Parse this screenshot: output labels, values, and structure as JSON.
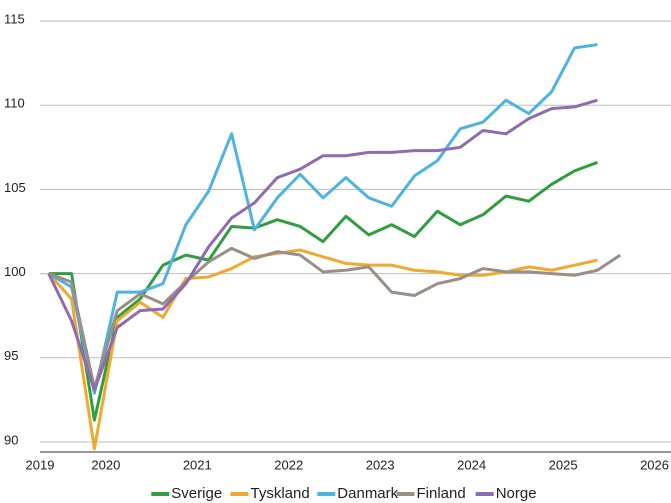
{
  "chart_data": {
    "type": "line",
    "x": [
      2019.875,
      2020.125,
      2020.375,
      2020.625,
      2020.875,
      2021.125,
      2021.375,
      2021.625,
      2021.875,
      2022.125,
      2022.375,
      2022.625,
      2022.875,
      2023.125,
      2023.375,
      2023.625,
      2023.875,
      2024.125,
      2024.375,
      2024.625,
      2024.875,
      2025.125,
      2025.375,
      2025.625,
      2025.875,
      2026.125
    ],
    "series": [
      {
        "name": "Sverige",
        "color": "#2e9e3e",
        "values": [
          100,
          100,
          91.3,
          97.4,
          98.5,
          100.5,
          101.1,
          100.8,
          102.8,
          102.7,
          103.2,
          102.8,
          101.9,
          103.4,
          102.3,
          102.9,
          102.2,
          103.7,
          102.9,
          103.5,
          104.6,
          104.3,
          105.3,
          106.1,
          106.6,
          null
        ]
      },
      {
        "name": "Tyskland",
        "color": "#f0a830",
        "values": [
          100,
          98.5,
          89.6,
          97.2,
          98.3,
          97.4,
          99.7,
          99.8,
          100.3,
          101.0,
          101.2,
          101.4,
          101.0,
          100.6,
          100.5,
          100.5,
          100.2,
          100.1,
          99.9,
          99.9,
          100.1,
          100.4,
          100.2,
          100.5,
          100.8,
          null
        ]
      },
      {
        "name": "Danmark",
        "color": "#4db3e0",
        "values": [
          100,
          99.2,
          92.9,
          98.9,
          98.9,
          99.4,
          102.9,
          104.9,
          108.3,
          102.6,
          104.5,
          105.9,
          104.5,
          105.7,
          104.5,
          104.0,
          105.8,
          106.7,
          108.6,
          109.0,
          110.3,
          109.5,
          110.8,
          113.4,
          113.6,
          null
        ]
      },
      {
        "name": "Finland",
        "color": "#9a8f88",
        "values": [
          100,
          99.5,
          93.2,
          97.8,
          98.8,
          98.2,
          99.5,
          100.7,
          101.5,
          100.9,
          101.3,
          101.1,
          100.1,
          100.2,
          100.4,
          98.9,
          98.7,
          99.4,
          99.7,
          100.3,
          100.1,
          100.1,
          100.0,
          99.9,
          100.2,
          101.1
        ]
      },
      {
        "name": "Norge",
        "color": "#8f6bb0",
        "values": [
          100,
          97.2,
          93.1,
          96.8,
          97.8,
          97.9,
          99.4,
          101.6,
          103.3,
          104.2,
          105.7,
          106.2,
          107.0,
          107.0,
          107.2,
          107.2,
          107.3,
          107.3,
          107.5,
          108.5,
          108.3,
          109.2,
          109.8,
          109.9,
          110.3,
          null
        ]
      }
    ],
    "xlim": [
      2019.78,
      2026.68
    ],
    "xticks": [
      {
        "value": 2019.78,
        "label": "2019"
      },
      {
        "value": 2020.5,
        "label": "2020"
      },
      {
        "value": 2021.5,
        "label": "2021"
      },
      {
        "value": 2022.5,
        "label": "2022"
      },
      {
        "value": 2023.5,
        "label": "2023"
      },
      {
        "value": 2024.5,
        "label": "2024"
      },
      {
        "value": 2025.5,
        "label": "2025"
      },
      {
        "value": 2026.5,
        "label": "2026"
      }
    ],
    "ylim": [
      90,
      115
    ],
    "yticks": [
      90,
      95,
      100,
      105,
      110,
      115
    ],
    "grid": true,
    "legend": "bottom"
  }
}
